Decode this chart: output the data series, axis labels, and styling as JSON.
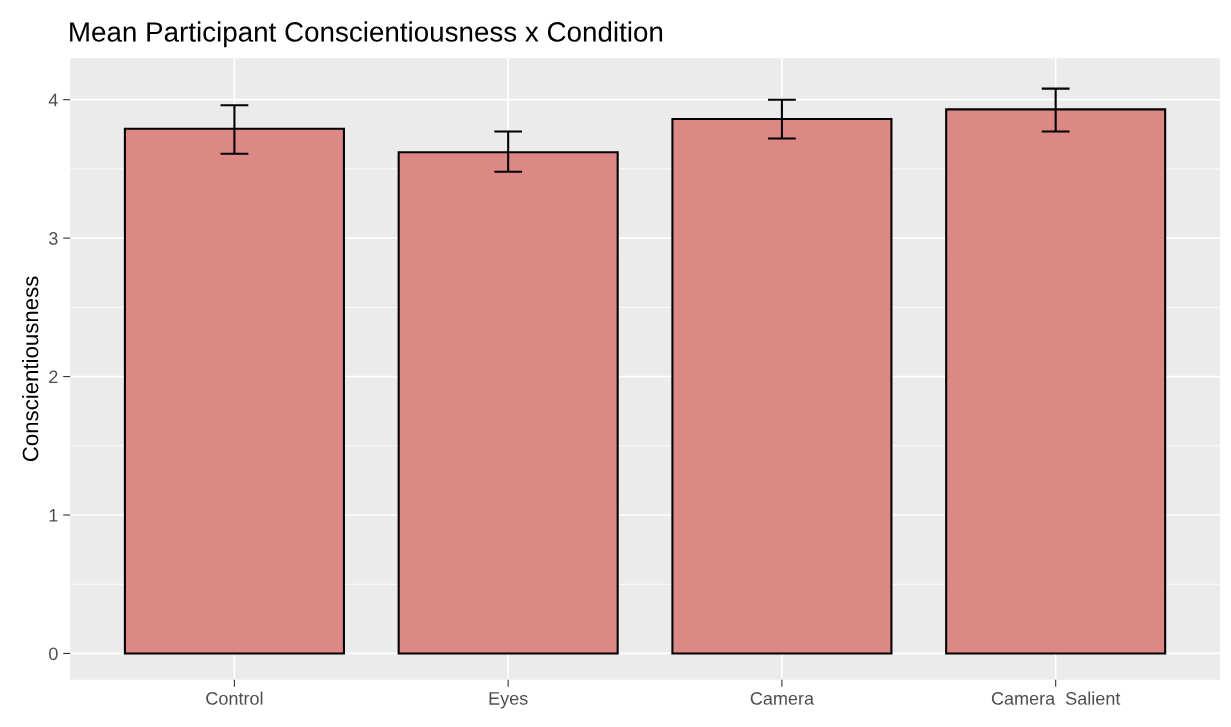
{
  "chart_data": {
    "type": "bar",
    "title": "Mean Participant Conscientiousness x Condition",
    "ylabel": "Conscientiousness",
    "categories": [
      "Control",
      "Eyes",
      "Camera",
      "Camera  Salient"
    ],
    "values": [
      3.79,
      3.62,
      3.86,
      3.93
    ],
    "errors": [
      [
        3.61,
        3.96
      ],
      [
        3.48,
        3.77
      ],
      [
        3.72,
        4.0
      ],
      [
        3.77,
        4.08
      ]
    ],
    "color": "#dc8884",
    "ylim": [
      -0.19,
      4.3
    ],
    "yticks": [
      0,
      1,
      2,
      3,
      4
    ],
    "grid": true
  }
}
